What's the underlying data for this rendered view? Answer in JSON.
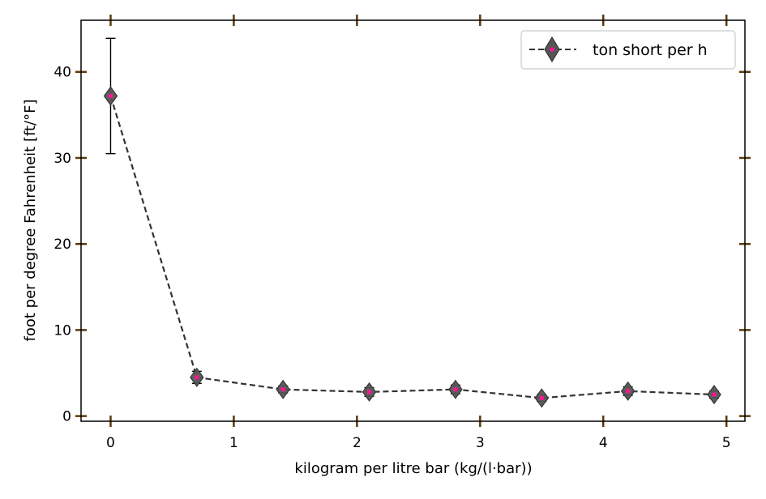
{
  "chart_data": {
    "type": "line",
    "title": "",
    "xlabel": "kilogram per litre bar (kg/(l·bar))",
    "ylabel": "foot per degree Fahrenheit [ft/°F]",
    "xlim": [
      -0.24,
      5.15
    ],
    "ylim": [
      -0.6,
      46.0
    ],
    "xticks": [
      0,
      1,
      2,
      3,
      4,
      5
    ],
    "yticks": [
      0,
      10,
      20,
      30,
      40
    ],
    "xtick_labels": [
      "0",
      "1",
      "2",
      "3",
      "4",
      "5"
    ],
    "ytick_labels": [
      "0",
      "10",
      "20",
      "30",
      "40"
    ],
    "grid": false,
    "legend_position": "top-right",
    "series": [
      {
        "name": "ton short per h",
        "x": [
          0.0,
          0.7,
          1.4,
          2.1,
          2.8,
          3.5,
          4.2,
          4.9
        ],
        "y": [
          37.2,
          4.5,
          3.1,
          2.8,
          3.1,
          2.1,
          2.9,
          2.5
        ],
        "yerr": [
          6.7,
          0.7,
          0.4,
          0.5,
          0.5,
          0.4,
          0.5,
          0.4
        ],
        "line_color": "#333333",
        "line_style": "dashed",
        "marker": "diamond",
        "marker_face": "#555555",
        "marker_center": "#ff1493"
      }
    ],
    "colors": {
      "frame": "#000000",
      "tick_mark": "#5a3a0a",
      "errorbar": "#000000"
    }
  }
}
